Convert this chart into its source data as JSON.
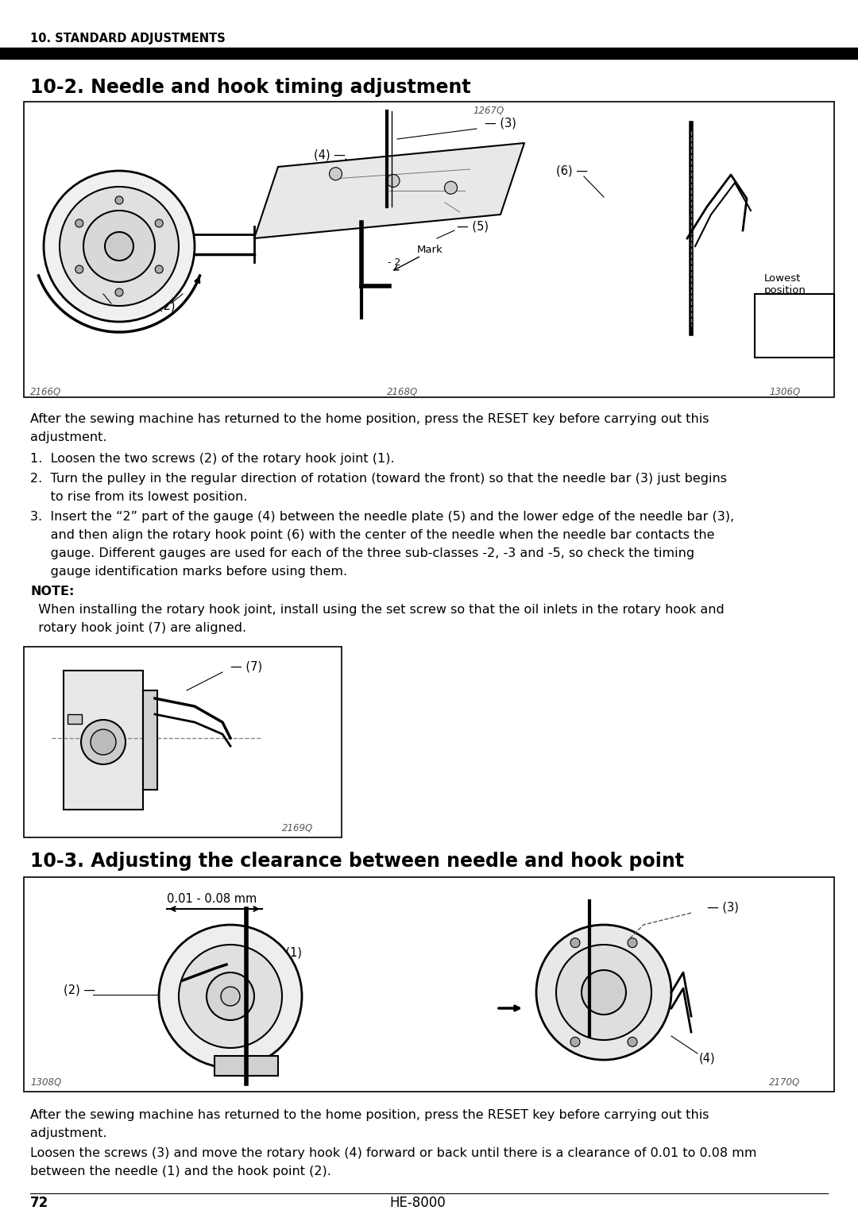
{
  "page_number": "72",
  "model": "HE-8000",
  "section_header": "10. STANDARD ADJUSTMENTS",
  "section_title": "10-2. Needle and hook timing adjustment",
  "section_title2": "10-3. Adjusting the clearance between needle and hook point",
  "para1_line1": "After the sewing machine has returned to the home position, press the RESET key before carrying out this",
  "para1_line2": "adjustment.",
  "item1": "1.  Loosen the two screws (2) of the rotary hook joint (1).",
  "item2_line1": "2.  Turn the pulley in the regular direction of rotation (toward the front) so that the needle bar (3) just begins",
  "item2_line2": "     to rise from its lowest position.",
  "item3_line1": "3.  Insert the “2” part of the gauge (4) between the needle plate (5) and the lower edge of the needle bar (3),",
  "item3_line2": "     and then align the rotary hook point (6) with the center of the needle when the needle bar contacts the",
  "item3_line3": "     gauge. Different gauges are used for each of the three sub-classes -2, -3 and -5, so check the timing",
  "item3_line4": "     gauge identification marks before using them.",
  "note_label": "NOTE:",
  "note_line1": "  When installing the rotary hook joint, install using the set screw so that the oil inlets in the rotary hook and",
  "note_line2": "  rotary hook joint (7) are aligned.",
  "para3_line1": "After the sewing machine has returned to the home position, press the RESET key before carrying out this",
  "para3_line2": "adjustment.",
  "para3_line3": "Loosen the screws (3) and move the rotary hook (4) forward or back until there is a clearance of 0.01 to 0.08 mm",
  "para3_line4": "between the needle (1) and the hook point (2).",
  "cap1_left": "2166Q",
  "cap1_mid": "2168Q",
  "cap1_right": "1306Q",
  "cap2": "2169Q",
  "cap3_left": "1308Q",
  "cap3_right": "2170Q",
  "fig1_num": "1267Q",
  "bg": "#ffffff",
  "black": "#000000",
  "gray": "#888888",
  "lgray": "#cccccc",
  "dgray": "#444444"
}
